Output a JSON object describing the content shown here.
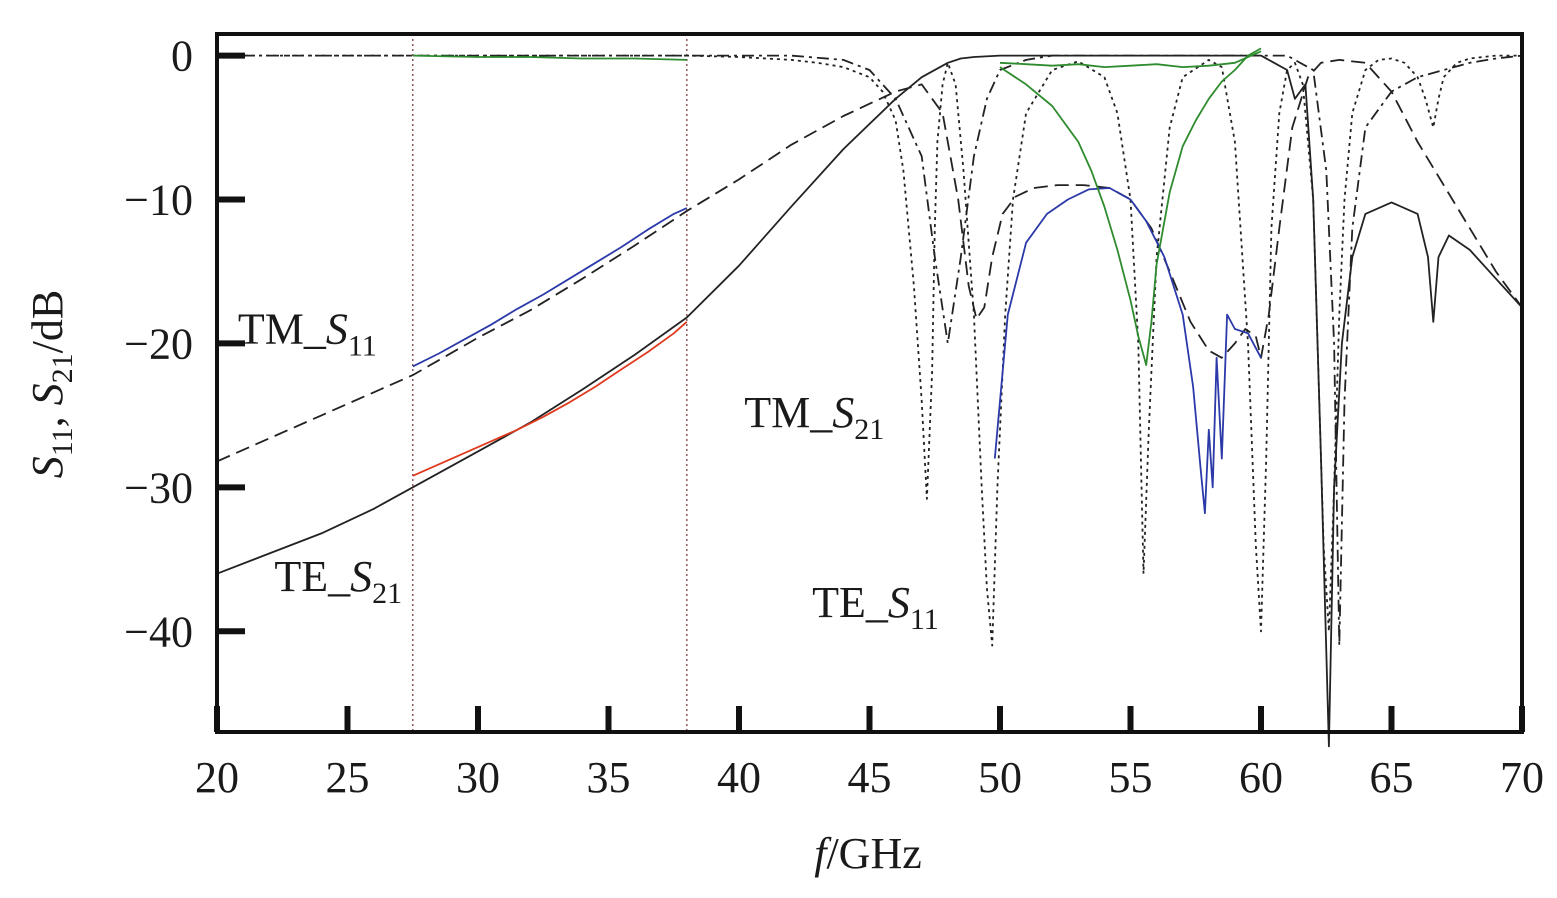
{
  "chart_data": {
    "type": "line",
    "title": "",
    "xlabel": {
      "var": "f",
      "unit": "/GHz"
    },
    "ylabel": {
      "s11_var": "S",
      "s11_sub": "11",
      "sep": ", ",
      "s21_var": "S",
      "s21_sub": "21",
      "unit": "/dB"
    },
    "xlim": [
      20,
      70
    ],
    "ylim": [
      -47,
      1.5
    ],
    "xticks": [
      20,
      25,
      30,
      35,
      40,
      45,
      50,
      55,
      60,
      65,
      70
    ],
    "yticks": [
      0,
      -10,
      -20,
      -30,
      -40
    ],
    "ytick_labels": [
      "0",
      "−10",
      "−20",
      "−30",
      "−40"
    ],
    "grid": false,
    "band_markers": [
      27.5,
      38
    ],
    "annotations": [
      {
        "prefix": "TM_",
        "var": "S",
        "sub": "11",
        "x": 20.8,
        "y": -20
      },
      {
        "prefix": "TM_",
        "var": "S",
        "sub": "21",
        "x": 40.2,
        "y": -25.8
      },
      {
        "prefix": "TE_",
        "var": "S",
        "sub": "21",
        "x": 22.2,
        "y": -37.2
      },
      {
        "prefix": "TE_",
        "var": "S",
        "sub": "11",
        "x": 42.8,
        "y": -39
      }
    ],
    "series": [
      {
        "color": "#222222",
        "style": "solid",
        "x": [
          20,
          22,
          24,
          26,
          27.5,
          30,
          32,
          34,
          36,
          38,
          40,
          42,
          44,
          46,
          47,
          48,
          48.5,
          49,
          50,
          52,
          54,
          56,
          58,
          60,
          61,
          61.3,
          61.7,
          62,
          62.3,
          62.6,
          62.8,
          63.1,
          63.5,
          64,
          65,
          66,
          66.4,
          66.6,
          66.8,
          67.2,
          68,
          69,
          70
        ],
        "y": [
          -36,
          -34.6,
          -33.2,
          -31.5,
          -30,
          -27.5,
          -25.5,
          -23.2,
          -20.8,
          -18.2,
          -14.6,
          -10.5,
          -6.5,
          -3,
          -1.5,
          -0.5,
          -0.2,
          -0.1,
          0,
          0,
          0,
          0,
          0,
          0,
          -1,
          -3,
          -2,
          -10,
          -28,
          -48,
          -30,
          -20,
          -14,
          -11,
          -10.2,
          -11,
          -14,
          -18.5,
          -14,
          -12.5,
          -13.5,
          -15.5,
          -17.5
        ]
      },
      {
        "color": "#222222",
        "style": "dash",
        "x": [
          20,
          22,
          24,
          26,
          27.5,
          30,
          32,
          34,
          36,
          38,
          40,
          42,
          44,
          46,
          47,
          47.8,
          48.4,
          48.8,
          49.1,
          49.4,
          49.7,
          50.1,
          50.6,
          51.3,
          52.2,
          53.2,
          54.2,
          55,
          55.8,
          56.5,
          57.3,
          58,
          58.5,
          59,
          59.4,
          59.8,
          60,
          60.3,
          60.7,
          61.2,
          61.8,
          62.3,
          63,
          64,
          65,
          66,
          67,
          68,
          69,
          70
        ],
        "y": [
          -28.2,
          -26.6,
          -25,
          -23.4,
          -22.2,
          -19.6,
          -17.7,
          -15.5,
          -13.2,
          -10.8,
          -8.6,
          -6.2,
          -4.2,
          -2.5,
          -2,
          -4,
          -10,
          -16,
          -18.3,
          -17.5,
          -14,
          -11,
          -9.8,
          -9.2,
          -9,
          -9,
          -9.2,
          -10,
          -12,
          -15,
          -18.5,
          -20.5,
          -21,
          -20,
          -19,
          -19.5,
          -21,
          -18,
          -12,
          -5,
          -1.5,
          -0.5,
          -0.3,
          -0.5,
          -2.5,
          -6,
          -9,
          -12,
          -15,
          -17.5
        ]
      },
      {
        "color": "#222222",
        "style": "dot",
        "x": [
          20,
          27.5,
          33,
          38,
          40,
          42,
          43,
          44,
          45,
          45.5,
          46,
          46.3,
          46.7,
          47,
          47.2,
          47.4,
          47.5,
          47.6,
          47.8,
          48,
          48.3,
          48.6,
          49,
          49.3,
          49.5,
          49.7,
          49.9,
          50.2,
          50.5,
          51,
          52,
          53,
          54,
          54.5,
          55,
          55.3,
          55.5,
          55.7,
          56,
          56.5,
          57,
          58,
          58.5,
          59,
          59.5,
          59.8,
          60,
          60.2,
          60.4,
          60.7,
          61,
          61.3,
          61.6,
          62,
          62.2,
          62.4,
          62.6,
          62.8,
          63,
          63.2,
          63.5,
          64,
          64.5,
          65,
          65.5,
          66,
          66.3,
          66.6,
          66.8,
          67,
          67.5,
          68,
          69,
          70
        ],
        "y": [
          0,
          0,
          0,
          0,
          -0.1,
          -0.3,
          -0.5,
          -0.8,
          -1.5,
          -2.5,
          -4.5,
          -8,
          -16,
          -24,
          -30.8,
          -22,
          -12,
          -6,
          -2,
          -0.5,
          -2,
          -8,
          -18,
          -30,
          -37,
          -41,
          -30,
          -18,
          -10,
          -4,
          -1,
          -0.4,
          -1.5,
          -4,
          -10,
          -20,
          -36,
          -26,
          -14,
          -5,
          -1.5,
          -0.3,
          -0.8,
          -6,
          -20,
          -34,
          -40,
          -28,
          -12,
          -4,
          -1,
          -0.5,
          -2,
          -10,
          -22,
          -34,
          -40,
          -30,
          -18,
          -10,
          -4,
          -1,
          -0.3,
          -0.2,
          -0.5,
          -1.5,
          -3,
          -5,
          -3,
          -1.5,
          -0.5,
          -0.2,
          0,
          0
        ]
      },
      {
        "color": "#222222",
        "style": "dashdot",
        "x": [
          20,
          30,
          38,
          42,
          44,
          45,
          46,
          47,
          47.5,
          48,
          48.5,
          49,
          49.5,
          50,
          51,
          52,
          53,
          54,
          55,
          56,
          57,
          58,
          59,
          60,
          61,
          62,
          62.5,
          62.8,
          63,
          63.2,
          63.5,
          64,
          65,
          66,
          67,
          68,
          69,
          70
        ],
        "y": [
          0,
          0,
          0,
          0,
          -0.3,
          -1,
          -3,
          -7,
          -14,
          -20,
          -14,
          -7,
          -3,
          -1,
          -0.3,
          0,
          0,
          0,
          0,
          0,
          0,
          0,
          0,
          0,
          0,
          -1,
          -8,
          -20,
          -41,
          -24,
          -12,
          -5,
          -2.5,
          -1.5,
          -1,
          -0.5,
          -0.2,
          0
        ]
      },
      {
        "color": "#2b3aa8",
        "style": "solid",
        "x": [
          27.5,
          28.5,
          29.5,
          30.5,
          31.5,
          32.5,
          33.5,
          34.5,
          35.5,
          36.5,
          37.5,
          38
        ],
        "y": [
          -21.6,
          -20.7,
          -19.7,
          -18.7,
          -17.6,
          -16.6,
          -15.5,
          -14.4,
          -13.3,
          -12.1,
          -11,
          -10.6
        ]
      },
      {
        "color": "#2b3aa8",
        "style": "solid",
        "x": [
          49.8,
          50.3,
          51,
          51.8,
          52.6,
          53.4,
          54.2,
          55,
          55.6,
          56.3,
          57,
          57.4,
          57.7,
          57.85,
          58,
          58.15,
          58.3,
          58.5,
          58.7,
          59,
          59.5,
          60
        ],
        "y": [
          -28,
          -18,
          -13,
          -11,
          -10,
          -9.3,
          -9.2,
          -10,
          -11.5,
          -14,
          -18,
          -23,
          -29,
          -31.8,
          -26,
          -30,
          -21,
          -28,
          -18,
          -19,
          -19.3,
          -21
        ]
      },
      {
        "color": "#e03a1e",
        "style": "solid",
        "x": [
          27.5,
          28.5,
          29.5,
          30.5,
          31.5,
          32.5,
          33.5,
          34.5,
          35.5,
          36.5,
          37.5,
          38
        ],
        "y": [
          -29.2,
          -28.4,
          -27.6,
          -26.8,
          -26,
          -25.1,
          -24.1,
          -23,
          -21.8,
          -20.6,
          -19.3,
          -18.5
        ]
      },
      {
        "color": "#2e8b2e",
        "style": "solid",
        "x": [
          27.5,
          30,
          32,
          34,
          36,
          38
        ],
        "y": [
          0,
          -0.1,
          -0.1,
          -0.2,
          -0.2,
          -0.3
        ]
      },
      {
        "color": "#2e8b2e",
        "style": "solid",
        "x": [
          50,
          51,
          52,
          53,
          53.5,
          54,
          54.5,
          55,
          55.3,
          55.6,
          55.8,
          56,
          56.5,
          57,
          57.5,
          58,
          58.5,
          59,
          59.5,
          60
        ],
        "y": [
          -0.8,
          -2,
          -3.5,
          -6,
          -8,
          -10.5,
          -13.5,
          -17,
          -19.5,
          -21.5,
          -18.5,
          -14.5,
          -9.5,
          -6.3,
          -4.5,
          -3,
          -1.8,
          -1,
          0,
          0.5
        ]
      },
      {
        "color": "#2e8b2e",
        "style": "solid",
        "x": [
          50,
          51,
          52,
          53,
          54,
          55,
          56,
          57,
          58,
          59,
          60
        ],
        "y": [
          -0.5,
          -0.6,
          -0.7,
          -0.6,
          -0.8,
          -0.7,
          -0.6,
          -0.8,
          -0.7,
          -0.5,
          0.3
        ]
      }
    ]
  }
}
